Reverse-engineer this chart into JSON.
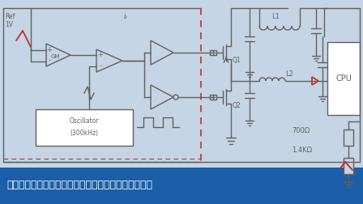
{
  "bg_color": "#c5d5e5",
  "title_bar_color": "#1a5fa8",
  "title_text": "如果芯片的主供电电压不足以使上管饱合导通，则需要",
  "title_text_color": "#ffffff",
  "title_fontsize": 9,
  "lc": "#606060",
  "lw": 1.0,
  "dc": "#c03030",
  "ref_label": "Ref\n1V",
  "gm_label": "GM",
  "osc_label_1": "Oscillator",
  "osc_label_2": "(300kHz)",
  "q1_label": "Q1",
  "q2_label": "Q2",
  "l1_label": "L1",
  "l2_label": "L2",
  "cpu_label": "CPU",
  "r1_label": "700Ω",
  "r2_label": "1.4KΩ",
  "ik_label": "iₖ"
}
